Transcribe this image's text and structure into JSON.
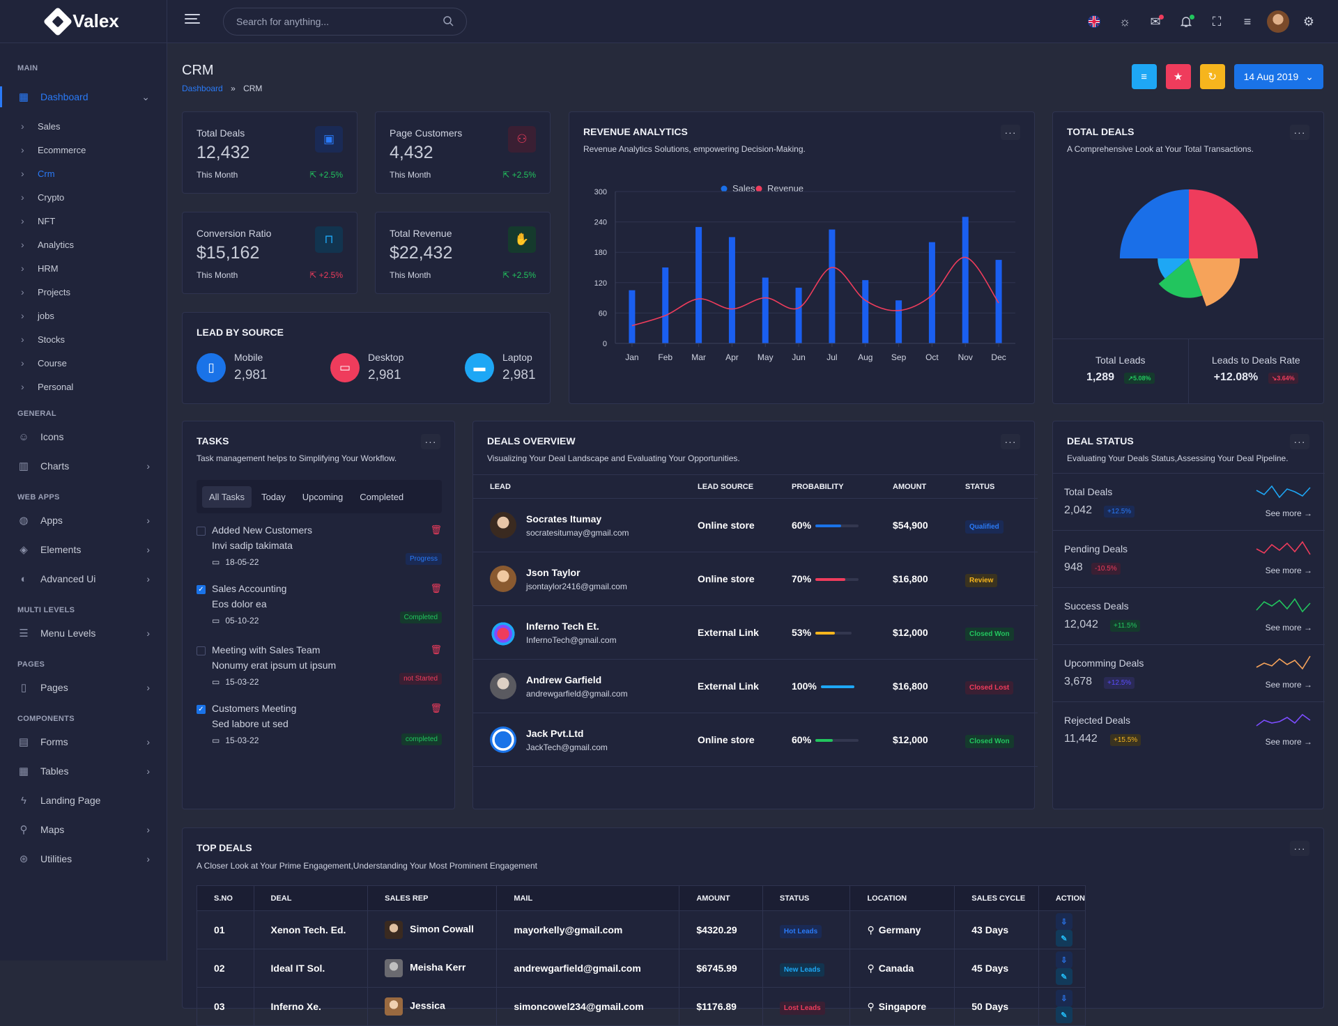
{
  "brand": {
    "name": "Valex"
  },
  "sidebar": {
    "sections": {
      "main": "MAIN",
      "general": "GENERAL",
      "webapps": "WEB APPS",
      "multilevels": "MULTI LEVELS",
      "pages": "PAGES",
      "components": "COMPONENTS"
    },
    "dashboard": "Dashboard",
    "subitems": [
      "Sales",
      "Ecommerce",
      "Crm",
      "Crypto",
      "NFT",
      "Analytics",
      "HRM",
      "Projects",
      "jobs",
      "Stocks",
      "Course",
      "Personal"
    ],
    "general": [
      "Icons",
      "Charts"
    ],
    "webapps": [
      "Apps",
      "Elements",
      "Advanced Ui"
    ],
    "multi": [
      "Menu Levels"
    ],
    "pages": [
      "Pages"
    ],
    "components": [
      "Forms",
      "Tables",
      "Landing Page",
      "Maps",
      "Utilities"
    ]
  },
  "header": {
    "search_placeholder": "Search for anything..."
  },
  "page": {
    "title": "CRM",
    "breadcrumb": {
      "home": "Dashboard",
      "sep": "»",
      "current": "CRM"
    },
    "date": "14 Aug 2019"
  },
  "stats": [
    {
      "label": "Total Deals",
      "value": "12,432",
      "sub": "This Month",
      "pct": "+2.5%"
    },
    {
      "label": "Page Customers",
      "value": "4,432",
      "sub": "This Month",
      "pct": "+2.5%"
    },
    {
      "label": "Conversion Ratio",
      "value": "$15,162",
      "sub": "This Month",
      "pct": "+2.5%"
    },
    {
      "label": "Total Revenue",
      "value": "$22,432",
      "sub": "This Month",
      "pct": "+2.5%"
    }
  ],
  "lead_source": {
    "title": "LEAD BY SOURCE",
    "items": [
      {
        "label": "Mobile",
        "value": "2,981"
      },
      {
        "label": "Desktop",
        "value": "2,981"
      },
      {
        "label": "Laptop",
        "value": "2,981"
      }
    ]
  },
  "revenue": {
    "title": "REVENUE ANALYTICS",
    "desc": "Revenue Analytics Solutions, empowering Decision-Making."
  },
  "chart_data": {
    "type": "bar",
    "categories": [
      "Jan",
      "Feb",
      "Mar",
      "Apr",
      "May",
      "Jun",
      "Jul",
      "Aug",
      "Sep",
      "Oct",
      "Nov",
      "Dec"
    ],
    "series": [
      {
        "name": "Sales",
        "type": "bar",
        "values": [
          105,
          150,
          230,
          210,
          130,
          110,
          225,
          125,
          85,
          200,
          250,
          165
        ]
      },
      {
        "name": "Revenue",
        "type": "line",
        "values": [
          35,
          55,
          88,
          68,
          90,
          70,
          150,
          85,
          65,
          95,
          170,
          80
        ]
      }
    ],
    "yticks": [
      "0",
      "60",
      "120",
      "180",
      "240",
      "300"
    ],
    "ylim": [
      0,
      300
    ],
    "legend": "top-center"
  },
  "total_deals": {
    "title": "TOTAL DEALS",
    "desc": "A Comprehensive Look at Your Total Transactions.",
    "pie": [
      {
        "value": 100,
        "radius": 1.0,
        "color": "#ef3c5c"
      },
      {
        "value": 100,
        "radius": 0.74,
        "color": "#f6a35a"
      },
      {
        "value": 90,
        "radius": 0.62,
        "color": "#22c55e"
      },
      {
        "value": 70,
        "radius": 0.5,
        "color": "#1ea7f5"
      },
      {
        "value": 0,
        "radius": 0,
        "color": ""
      },
      {
        "value": 0,
        "radius": 0,
        "color": ""
      }
    ],
    "pie_big": {
      "value": 0,
      "radius": 0,
      "color": ""
    },
    "pie_blue": {
      "value": 100,
      "radius": 1.0,
      "color": "#1a6fe8"
    },
    "foot": [
      {
        "label": "Total Leads",
        "value": "1,289",
        "pct": "5.08%"
      },
      {
        "label": "Leads to Deals Rate",
        "value": "+12.08%",
        "pct": "3.64%"
      }
    ]
  },
  "tasks": {
    "title": "TASKS",
    "desc": "Task management helps to Simplifying Your Workflow.",
    "tabs": [
      "All Tasks",
      "Today",
      "Upcoming",
      "Completed"
    ],
    "items": [
      {
        "title": "Added New Customers",
        "sub": "Invi sadip takimata",
        "date": "18-05-22",
        "badge": "Progress"
      },
      {
        "title": "Sales Accounting",
        "sub": "Eos dolor ea",
        "date": "05-10-22",
        "badge": "Completed"
      },
      {
        "title": "Meeting with Sales Team",
        "sub": "Nonumy erat ipsum ut ipsum",
        "date": "15-03-22",
        "badge": "not Started"
      },
      {
        "title": "Customers Meeting",
        "sub": "Sed labore ut sed",
        "date": "15-03-22",
        "badge": "completed"
      }
    ]
  },
  "deals_overview": {
    "title": "DEALS OVERVIEW",
    "desc": "Visualizing Your Deal Landscape and Evaluating Your Opportunities.",
    "headers": [
      "LEAD",
      "LEAD SOURCE",
      "PROBABILITY",
      "AMOUNT",
      "STATUS"
    ],
    "rows": [
      {
        "name": "Socrates Itumay",
        "email": "socratesitumay@gmail.com",
        "source": "Online store",
        "prob": "60%",
        "amount": "$54,900",
        "status": "Qualified"
      },
      {
        "name": "Json Taylor",
        "email": "jsontaylor2416@gmail.com",
        "source": "Online store",
        "prob": "70%",
        "amount": "$16,800",
        "status": "Review"
      },
      {
        "name": "Inferno Tech Et.",
        "email": "InfernoTech@gmail.com",
        "source": "External Link",
        "prob": "53%",
        "amount": "$12,000",
        "status": "Closed Won"
      },
      {
        "name": "Andrew Garfield",
        "email": "andrewgarfield@gmail.com",
        "source": "External Link",
        "prob": "100%",
        "amount": "$16,800",
        "status": "Closed Lost"
      },
      {
        "name": "Jack Pvt.Ltd",
        "email": "JackTech@gmail.com",
        "source": "Online store",
        "prob": "60%",
        "amount": "$12,000",
        "status": "Closed Won"
      }
    ]
  },
  "deal_status": {
    "title": "DEAL STATUS",
    "desc": "Evaluating Your Deals Status,Assessing Your Deal Pipeline.",
    "see_more": "See more",
    "items": [
      {
        "label": "Total Deals",
        "value": "2,042",
        "pct": "+12.5%",
        "color": "#1ea7f5"
      },
      {
        "label": "Pending Deals",
        "value": "948",
        "pct": "-10.5%",
        "color": "#ef3c5c"
      },
      {
        "label": "Success Deals",
        "value": "12,042",
        "pct": "+11.5%",
        "color": "#22c55e"
      },
      {
        "label": "Upcomming Deals",
        "value": "3,678",
        "pct": "+12.5%",
        "color": "#f6a35a"
      },
      {
        "label": "Rejected Deals",
        "value": "11,442",
        "pct": "+15.5%",
        "color": "#7c4dff"
      }
    ]
  },
  "top_deals": {
    "title": "TOP DEALS",
    "desc": "A Closer Look at Your Prime Engagement,Understanding Your Most Prominent Engagement",
    "headers": [
      "S.NO",
      "DEAL",
      "SALES REP",
      "MAIL",
      "AMOUNT",
      "STATUS",
      "LOCATION",
      "SALES CYCLE",
      "ACTION"
    ],
    "rows": [
      {
        "no": "01",
        "deal": "Xenon Tech. Ed.",
        "rep": "Simon Cowall",
        "mail": "mayorkelly@gmail.com",
        "amount": "$4320.29",
        "status": "Hot Leads",
        "loc": "Germany",
        "cycle": "43 Days"
      },
      {
        "no": "02",
        "deal": "Ideal IT Sol.",
        "rep": "Meisha Kerr",
        "mail": "andrewgarfield@gmail.com",
        "amount": "$6745.99",
        "status": "New Leads",
        "loc": "Canada",
        "cycle": "45 Days"
      },
      {
        "no": "03",
        "deal": "Inferno Xe.",
        "rep": "Jessica",
        "mail": "simoncowel234@gmail.com",
        "amount": "$1176.89",
        "status": "Lost Leads",
        "loc": "Singapore",
        "cycle": "50 Days"
      }
    ]
  },
  "colors": {
    "accent": "#1a73e8",
    "danger": "#ef3c5c",
    "success": "#22c55e",
    "warning": "#f6b51d",
    "info": "#1ea7f5"
  }
}
